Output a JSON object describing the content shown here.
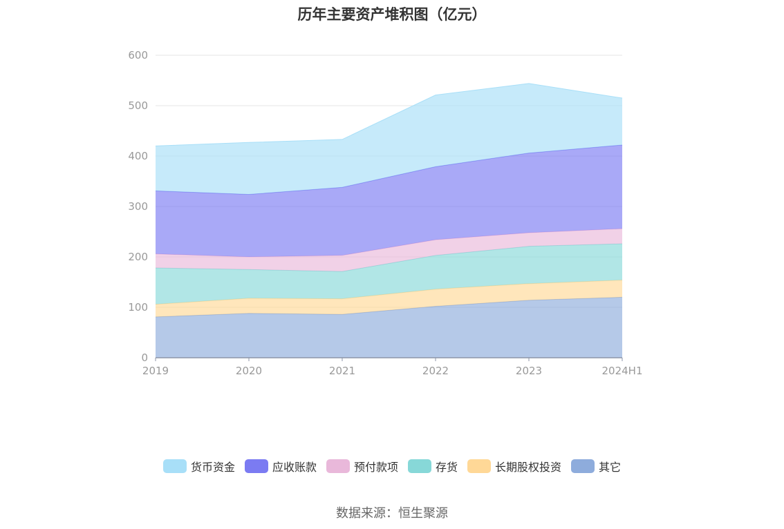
{
  "chart_data": {
    "type": "area",
    "stacked": true,
    "title": "历年主要资产堆积图（亿元）",
    "source": "数据来源：恒生聚源",
    "categories": [
      "2019",
      "2020",
      "2021",
      "2022",
      "2023",
      "2024H1"
    ],
    "ylim": [
      0,
      600
    ],
    "yticks": [
      0,
      100,
      200,
      300,
      400,
      500,
      600
    ],
    "grid": true,
    "legend_position": "bottom",
    "series": [
      {
        "name": "其它",
        "color": "#8eacdc",
        "values": [
          81,
          88,
          86,
          102,
          114,
          120
        ]
      },
      {
        "name": "长期股权投资",
        "color": "#ffd897",
        "values": [
          25,
          30,
          31,
          34,
          33,
          34
        ]
      },
      {
        "name": "存货",
        "color": "#87d8d8",
        "values": [
          72,
          57,
          54,
          67,
          74,
          72
        ]
      },
      {
        "name": "预付款项",
        "color": "#e9b8da",
        "values": [
          28,
          25,
          32,
          31,
          27,
          30
        ]
      },
      {
        "name": "应收账款",
        "color": "#7b7bf2",
        "values": [
          125,
          124,
          135,
          145,
          158,
          166
        ]
      },
      {
        "name": "货币资金",
        "color": "#a8dff8",
        "values": [
          89,
          103,
          95,
          142,
          138,
          93
        ]
      }
    ],
    "legend_order": [
      "货币资金",
      "应收账款",
      "预付款项",
      "存货",
      "长期股权投资",
      "其它"
    ]
  }
}
